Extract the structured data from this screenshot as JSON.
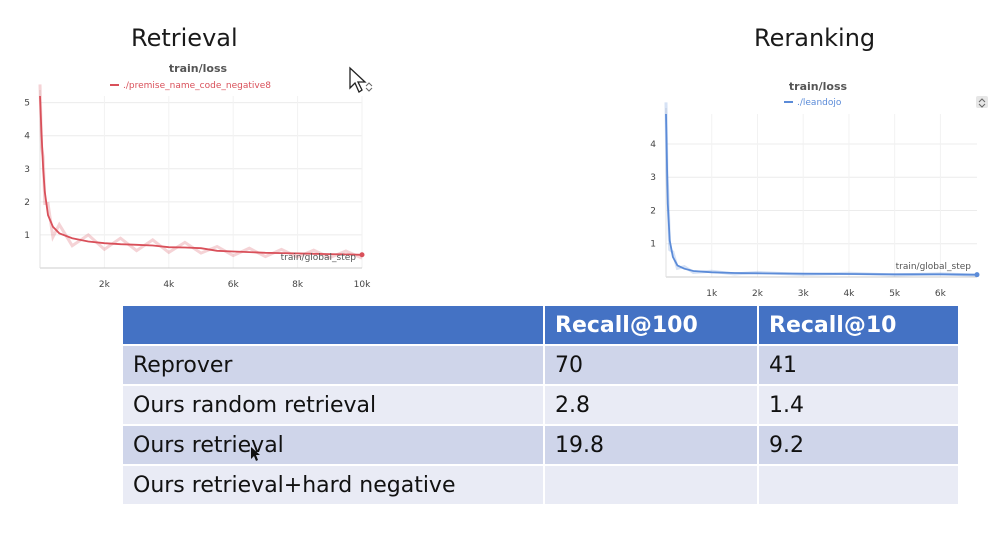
{
  "headings": {
    "left": "Retrieval",
    "right": "Reranking"
  },
  "chart_data": [
    {
      "type": "line",
      "title": "train/loss",
      "xlabel": "train/global_step",
      "ylabel": "",
      "xlim": [
        0,
        10000
      ],
      "ylim": [
        0,
        5.2
      ],
      "xticks": [
        2000,
        4000,
        6000,
        8000,
        10000
      ],
      "xtick_labels": [
        "2k",
        "4k",
        "6k",
        "8k",
        "10k"
      ],
      "yticks": [
        1,
        2,
        3,
        4,
        5
      ],
      "ytick_labels": [
        "1",
        "2",
        "3",
        "4",
        "5"
      ],
      "grid": true,
      "legend_position": "top",
      "color": "#d9505a",
      "series": [
        {
          "name": "./premise_name_code_negative8",
          "x": [
            0,
            50,
            100,
            150,
            250,
            400,
            600,
            1000,
            1500,
            2000,
            2500,
            3000,
            3500,
            4000,
            4500,
            5000,
            5500,
            6000,
            6500,
            7000,
            7500,
            8000,
            8500,
            9000,
            9500,
            10000
          ],
          "y": [
            5.2,
            4.0,
            3.0,
            2.3,
            1.6,
            1.25,
            1.05,
            0.9,
            0.8,
            0.75,
            0.72,
            0.7,
            0.68,
            0.63,
            0.62,
            0.6,
            0.52,
            0.5,
            0.48,
            0.46,
            0.45,
            0.44,
            0.43,
            0.42,
            0.41,
            0.4
          ]
        }
      ]
    },
    {
      "type": "line",
      "title": "train/loss",
      "xlabel": "train/global_step",
      "ylabel": "",
      "xlim": [
        0,
        6800
      ],
      "ylim": [
        0,
        4.9
      ],
      "xticks": [
        1000,
        2000,
        3000,
        4000,
        5000,
        6000
      ],
      "xtick_labels": [
        "1k",
        "2k",
        "3k",
        "4k",
        "5k",
        "6k"
      ],
      "yticks": [
        1,
        2,
        3,
        4
      ],
      "ytick_labels": [
        "1",
        "2",
        "3",
        "4"
      ],
      "grid": true,
      "legend_position": "top",
      "color": "#5b8bd8",
      "series": [
        {
          "name": "./leandojo",
          "x": [
            0,
            20,
            40,
            80,
            150,
            250,
            400,
            600,
            1000,
            1500,
            2000,
            3000,
            4000,
            5000,
            6000,
            6800
          ],
          "y": [
            4.9,
            3.5,
            2.2,
            1.1,
            0.6,
            0.35,
            0.25,
            0.18,
            0.14,
            0.12,
            0.11,
            0.1,
            0.09,
            0.08,
            0.08,
            0.07
          ]
        }
      ]
    }
  ],
  "table": {
    "headers": [
      "",
      "Recall@100",
      "Recall@10"
    ],
    "rows": [
      [
        "Reprover",
        "70",
        "41"
      ],
      [
        "Ours random retrieval",
        "2.8",
        "1.4"
      ],
      [
        "Ours retrieval",
        "19.8",
        "9.2"
      ],
      [
        "Ours retrieval+hard negative",
        "",
        ""
      ]
    ]
  }
}
